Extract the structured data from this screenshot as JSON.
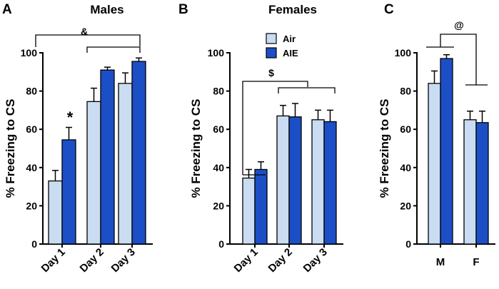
{
  "colors": {
    "air": "#c9dcf2",
    "aie": "#1c4fc6"
  },
  "legend": {
    "air": "Air",
    "aie": "AIE"
  },
  "chart_data": [
    {
      "panel_letter": "A",
      "type": "bar",
      "title": "Males",
      "ylabel": "% Freezing to CS",
      "xlabel": "",
      "ylim": [
        0,
        100
      ],
      "yticks": [
        "0",
        "20",
        "40",
        "60",
        "80",
        "100"
      ],
      "categories": [
        "Day 1",
        "Day 2",
        "Day 3"
      ],
      "series": [
        {
          "name": "Air",
          "values": [
            33,
            74.5,
            84
          ],
          "errors": [
            5.5,
            7,
            5.5
          ]
        },
        {
          "name": "AIE",
          "values": [
            54.5,
            91,
            95.5
          ],
          "errors": [
            6.5,
            1.5,
            1.8
          ]
        }
      ],
      "annotations": [
        {
          "text": "&",
          "meaning": "Day 1 vs Days 2-3"
        },
        {
          "text": "*",
          "meaning": "AIE vs Air on Day 1"
        }
      ]
    },
    {
      "panel_letter": "B",
      "type": "bar",
      "title": "Females",
      "ylabel": "% Freezing to CS",
      "xlabel": "",
      "ylim": [
        0,
        100
      ],
      "yticks": [
        "0",
        "20",
        "40",
        "60",
        "80",
        "100"
      ],
      "categories": [
        "Day 1",
        "Day 2",
        "Day 3"
      ],
      "series": [
        {
          "name": "Air",
          "values": [
            34.5,
            67,
            65
          ],
          "errors": [
            4.5,
            5.5,
            5
          ]
        },
        {
          "name": "AIE",
          "values": [
            39,
            66.5,
            64
          ],
          "errors": [
            4,
            7,
            6
          ]
        }
      ],
      "annotations": [
        {
          "text": "$",
          "meaning": "Day 1 vs Days 2-3"
        }
      ]
    },
    {
      "panel_letter": "C",
      "type": "bar",
      "title": "",
      "ylabel": "% Freezing to CS",
      "xlabel": "",
      "ylim": [
        0,
        100
      ],
      "yticks": [
        "0",
        "20",
        "40",
        "60",
        "80",
        "100"
      ],
      "categories": [
        "M",
        "F"
      ],
      "series": [
        {
          "name": "Air",
          "values": [
            84,
            65
          ],
          "errors": [
            6.5,
            4.5
          ]
        },
        {
          "name": "AIE",
          "values": [
            97,
            63.5
          ],
          "errors": [
            2,
            6
          ]
        }
      ],
      "annotations": [
        {
          "text": "@",
          "meaning": "M vs F"
        }
      ]
    }
  ]
}
